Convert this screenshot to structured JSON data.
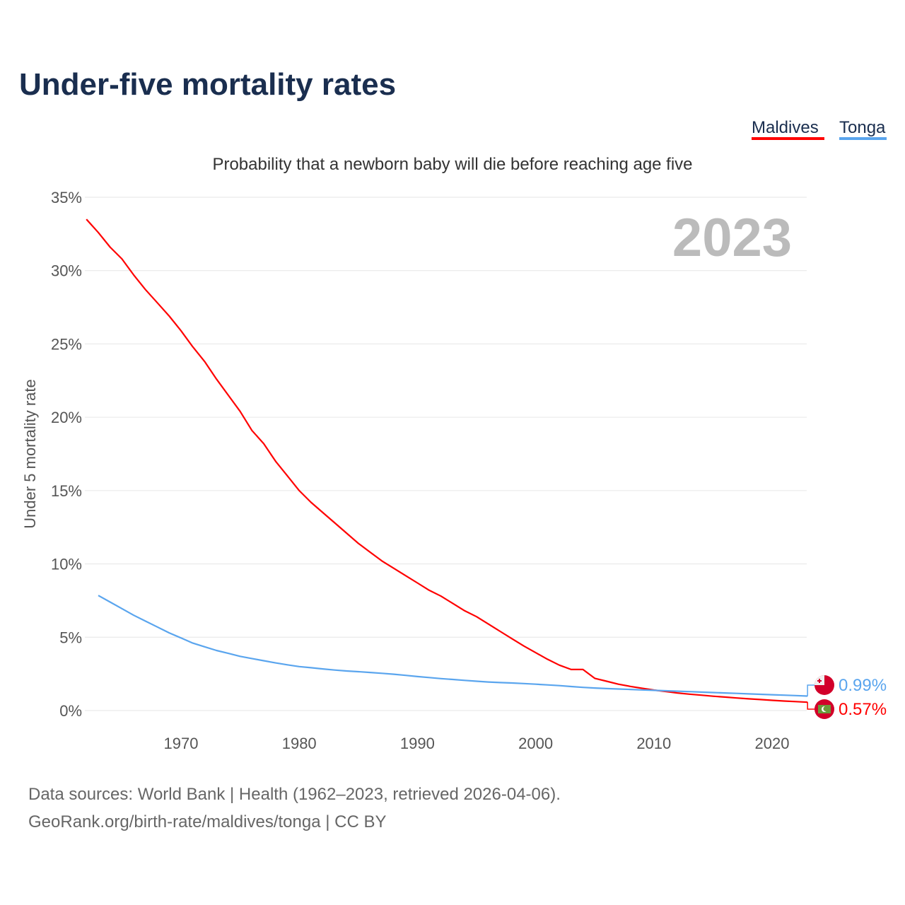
{
  "chart_data": {
    "type": "line",
    "title": "Under-five mortality rates",
    "subtitle": "Probability that a newborn baby will die before reaching age five",
    "ylabel": "Under 5 mortality rate",
    "xlabel": "",
    "ylim": [
      0,
      35
    ],
    "xlim": [
      1962,
      2023
    ],
    "grid": true,
    "legend_placement": "top-right",
    "y_ticks": [
      0,
      5,
      10,
      15,
      20,
      25,
      30,
      35
    ],
    "y_tick_labels": [
      "0%",
      "5%",
      "10%",
      "15%",
      "20%",
      "25%",
      "30%",
      "35%"
    ],
    "x_ticks": [
      1970,
      1980,
      1990,
      2000,
      2010,
      2020
    ],
    "x_tick_labels": [
      "1970",
      "1980",
      "1990",
      "2000",
      "2010",
      "2020"
    ],
    "year_watermark": "2023",
    "series": [
      {
        "name": "Maldives",
        "color": "#ff0000",
        "flag": "maldives-flag",
        "end_label": "0.57%",
        "start_year": 1962,
        "values": [
          33.5,
          32.6,
          31.6,
          30.8,
          29.7,
          28.7,
          27.8,
          26.9,
          25.9,
          24.8,
          23.8,
          22.6,
          21.5,
          20.4,
          19.1,
          18.2,
          17.0,
          16.0,
          15.0,
          14.2,
          13.5,
          12.8,
          12.1,
          11.4,
          10.8,
          10.2,
          9.7,
          9.2,
          8.7,
          8.2,
          7.8,
          7.3,
          6.8,
          6.4,
          5.9,
          5.4,
          4.9,
          4.4,
          3.95,
          3.5,
          3.1,
          2.8,
          2.8,
          2.2,
          2.0,
          1.8,
          1.65,
          1.52,
          1.4,
          1.3,
          1.2,
          1.12,
          1.05,
          0.98,
          0.92,
          0.86,
          0.8,
          0.75,
          0.7,
          0.65,
          0.61,
          0.57
        ]
      },
      {
        "name": "Tonga",
        "color": "#5aa5ee",
        "flag": "tonga-flag",
        "end_label": "0.99%",
        "start_year": 1963,
        "values": [
          7.85,
          7.4,
          6.95,
          6.5,
          6.1,
          5.7,
          5.3,
          4.95,
          4.6,
          4.35,
          4.1,
          3.9,
          3.7,
          3.55,
          3.4,
          3.25,
          3.12,
          3.0,
          2.92,
          2.84,
          2.76,
          2.7,
          2.65,
          2.6,
          2.54,
          2.48,
          2.4,
          2.32,
          2.25,
          2.18,
          2.12,
          2.06,
          2.0,
          1.95,
          1.91,
          1.88,
          1.84,
          1.8,
          1.75,
          1.7,
          1.64,
          1.58,
          1.54,
          1.5,
          1.47,
          1.44,
          1.41,
          1.38,
          1.35,
          1.32,
          1.29,
          1.26,
          1.23,
          1.2,
          1.17,
          1.14,
          1.11,
          1.08,
          1.05,
          1.02,
          0.99
        ]
      }
    ]
  },
  "footer": {
    "line1": "Data sources: World Bank | Health (1962–2023, retrieved 2026-04-06).",
    "line2": "GeoRank.org/birth-rate/maldives/tonga | CC BY"
  }
}
